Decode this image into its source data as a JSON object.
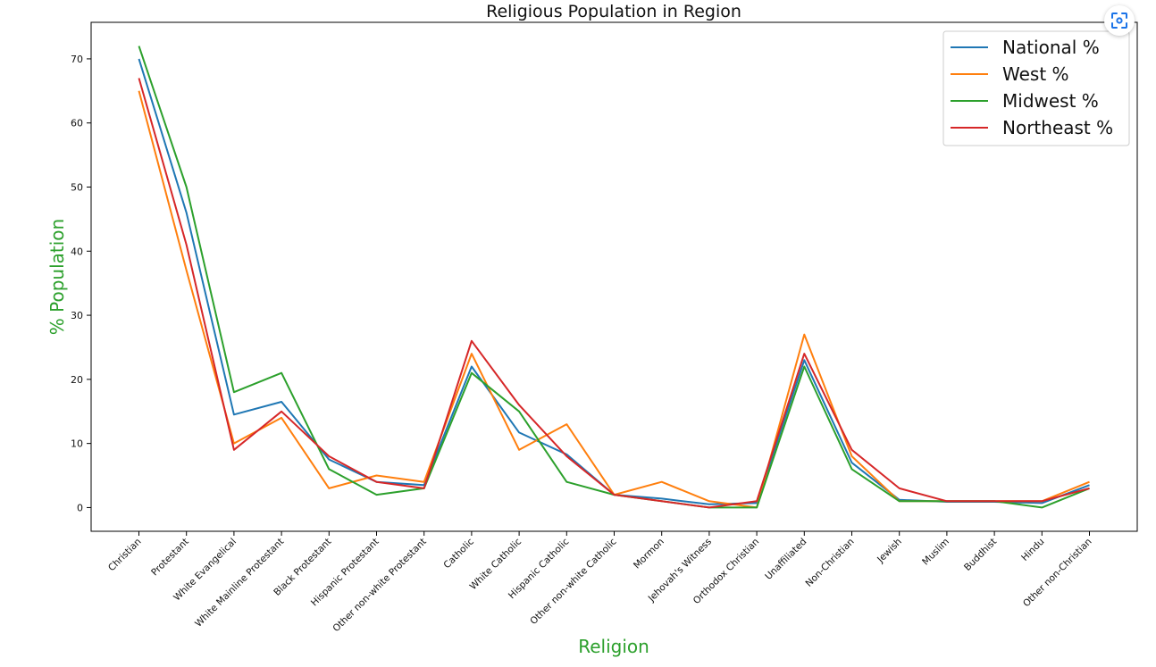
{
  "chart_data": {
    "type": "line",
    "title": "Religious Population in Region",
    "xlabel": "Religion",
    "ylabel": "% Population",
    "label_color": "#2ca02c",
    "ylim": [
      -3.7,
      75.7
    ],
    "yticks": [
      0,
      10,
      20,
      30,
      40,
      50,
      60,
      70
    ],
    "categories": [
      "Christian",
      "Protestant",
      "White Evangelical",
      "White Mainline Protestant",
      "Black Protestant",
      "Hispanic Protestant",
      "Other non-white Protestant",
      "Catholic",
      "White Catholic",
      "Hispanic Catholic",
      "Other non-white Catholic",
      "Mormon",
      "Jehovah's Witness",
      "Orthodox Christian",
      "Unaffiliated",
      "Non-Christian",
      "Jewish",
      "Muslim",
      "Buddhist",
      "Hindu",
      "Other non-Christian"
    ],
    "series": [
      {
        "name": "National %",
        "color": "#1f77b4",
        "values": [
          70,
          46,
          14.5,
          16.5,
          7.5,
          4,
          3.5,
          22,
          11.7,
          8.3,
          2,
          1.4,
          0.5,
          0.7,
          23,
          7,
          1.2,
          0.9,
          0.9,
          0.7,
          3.5
        ]
      },
      {
        "name": "West %",
        "color": "#ff7f0e",
        "values": [
          65,
          37,
          10,
          14,
          3,
          5,
          4,
          24,
          9,
          13,
          2,
          4,
          1,
          0,
          27,
          8,
          1,
          1,
          1,
          1,
          4
        ]
      },
      {
        "name": "Midwest %",
        "color": "#2ca02c",
        "values": [
          72,
          50,
          18,
          21,
          6,
          2,
          3,
          21,
          15,
          4,
          2,
          1,
          0,
          0,
          22,
          6,
          1,
          1,
          1,
          0,
          3
        ]
      },
      {
        "name": "Northeast %",
        "color": "#d62728",
        "values": [
          67,
          41,
          9,
          15,
          8,
          4,
          3,
          26,
          16,
          8,
          2,
          1,
          0,
          1,
          24,
          9,
          3,
          1,
          1,
          1,
          3
        ]
      }
    ],
    "legend_position": "top-right",
    "grid": false
  },
  "toolbar": {
    "scan_icon": "scan-icon"
  }
}
